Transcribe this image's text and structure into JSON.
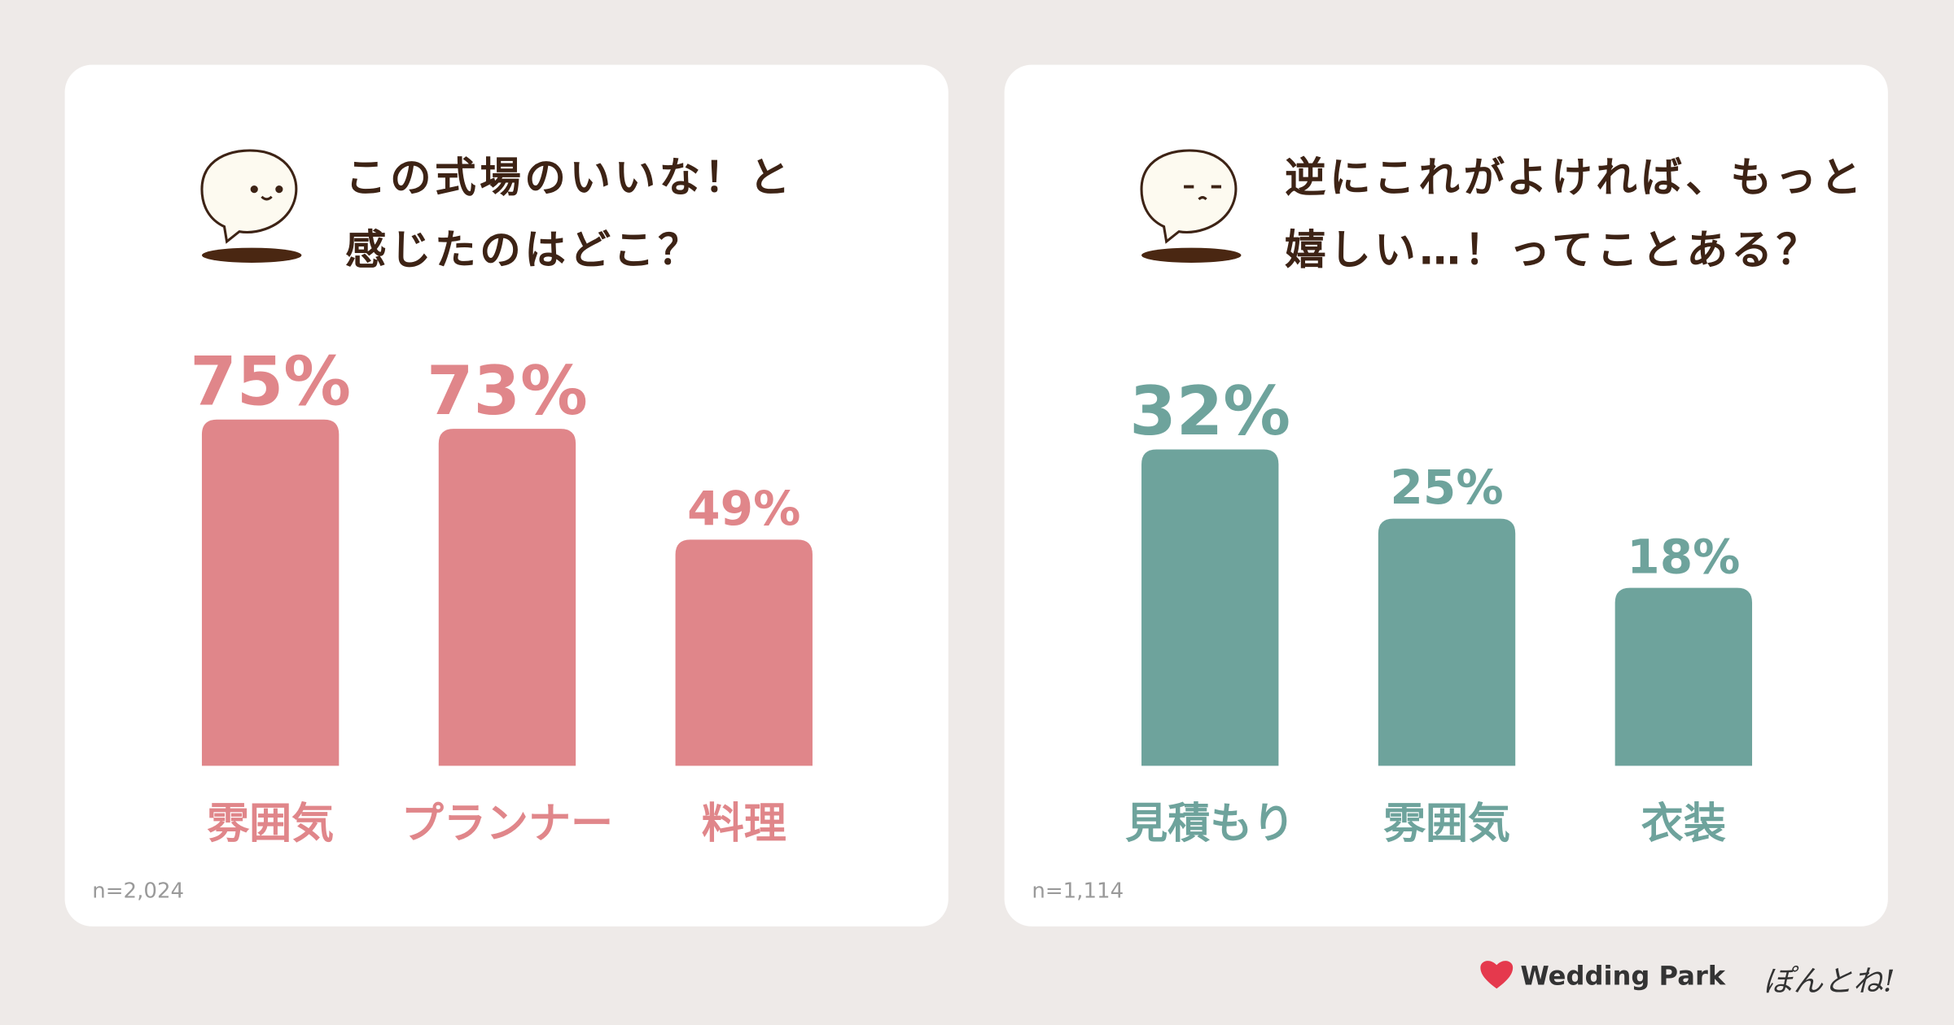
{
  "chart_data": [
    {
      "type": "bar",
      "title": "この式場のいいな！と\n感じたのはどこ？",
      "categories": [
        "雰囲気",
        "プランナー",
        "料理"
      ],
      "values": [
        75,
        73,
        49
      ],
      "value_labels": [
        "75%",
        "73%",
        "49%"
      ],
      "color": "#e0868a",
      "note": "n=2,024"
    },
    {
      "type": "bar",
      "title": "逆にこれがよければ、もっと\n嬉しい…！ってことある？",
      "categories": [
        "見積もり",
        "雰囲気",
        "衣装"
      ],
      "values": [
        32,
        25,
        18
      ],
      "value_labels": [
        "32%",
        "25%",
        "18%"
      ],
      "color": "#6ea39c",
      "note": "n=1,114"
    }
  ],
  "footer": {
    "brand": "Wedding Park",
    "tagline": "ぽんとね!"
  }
}
